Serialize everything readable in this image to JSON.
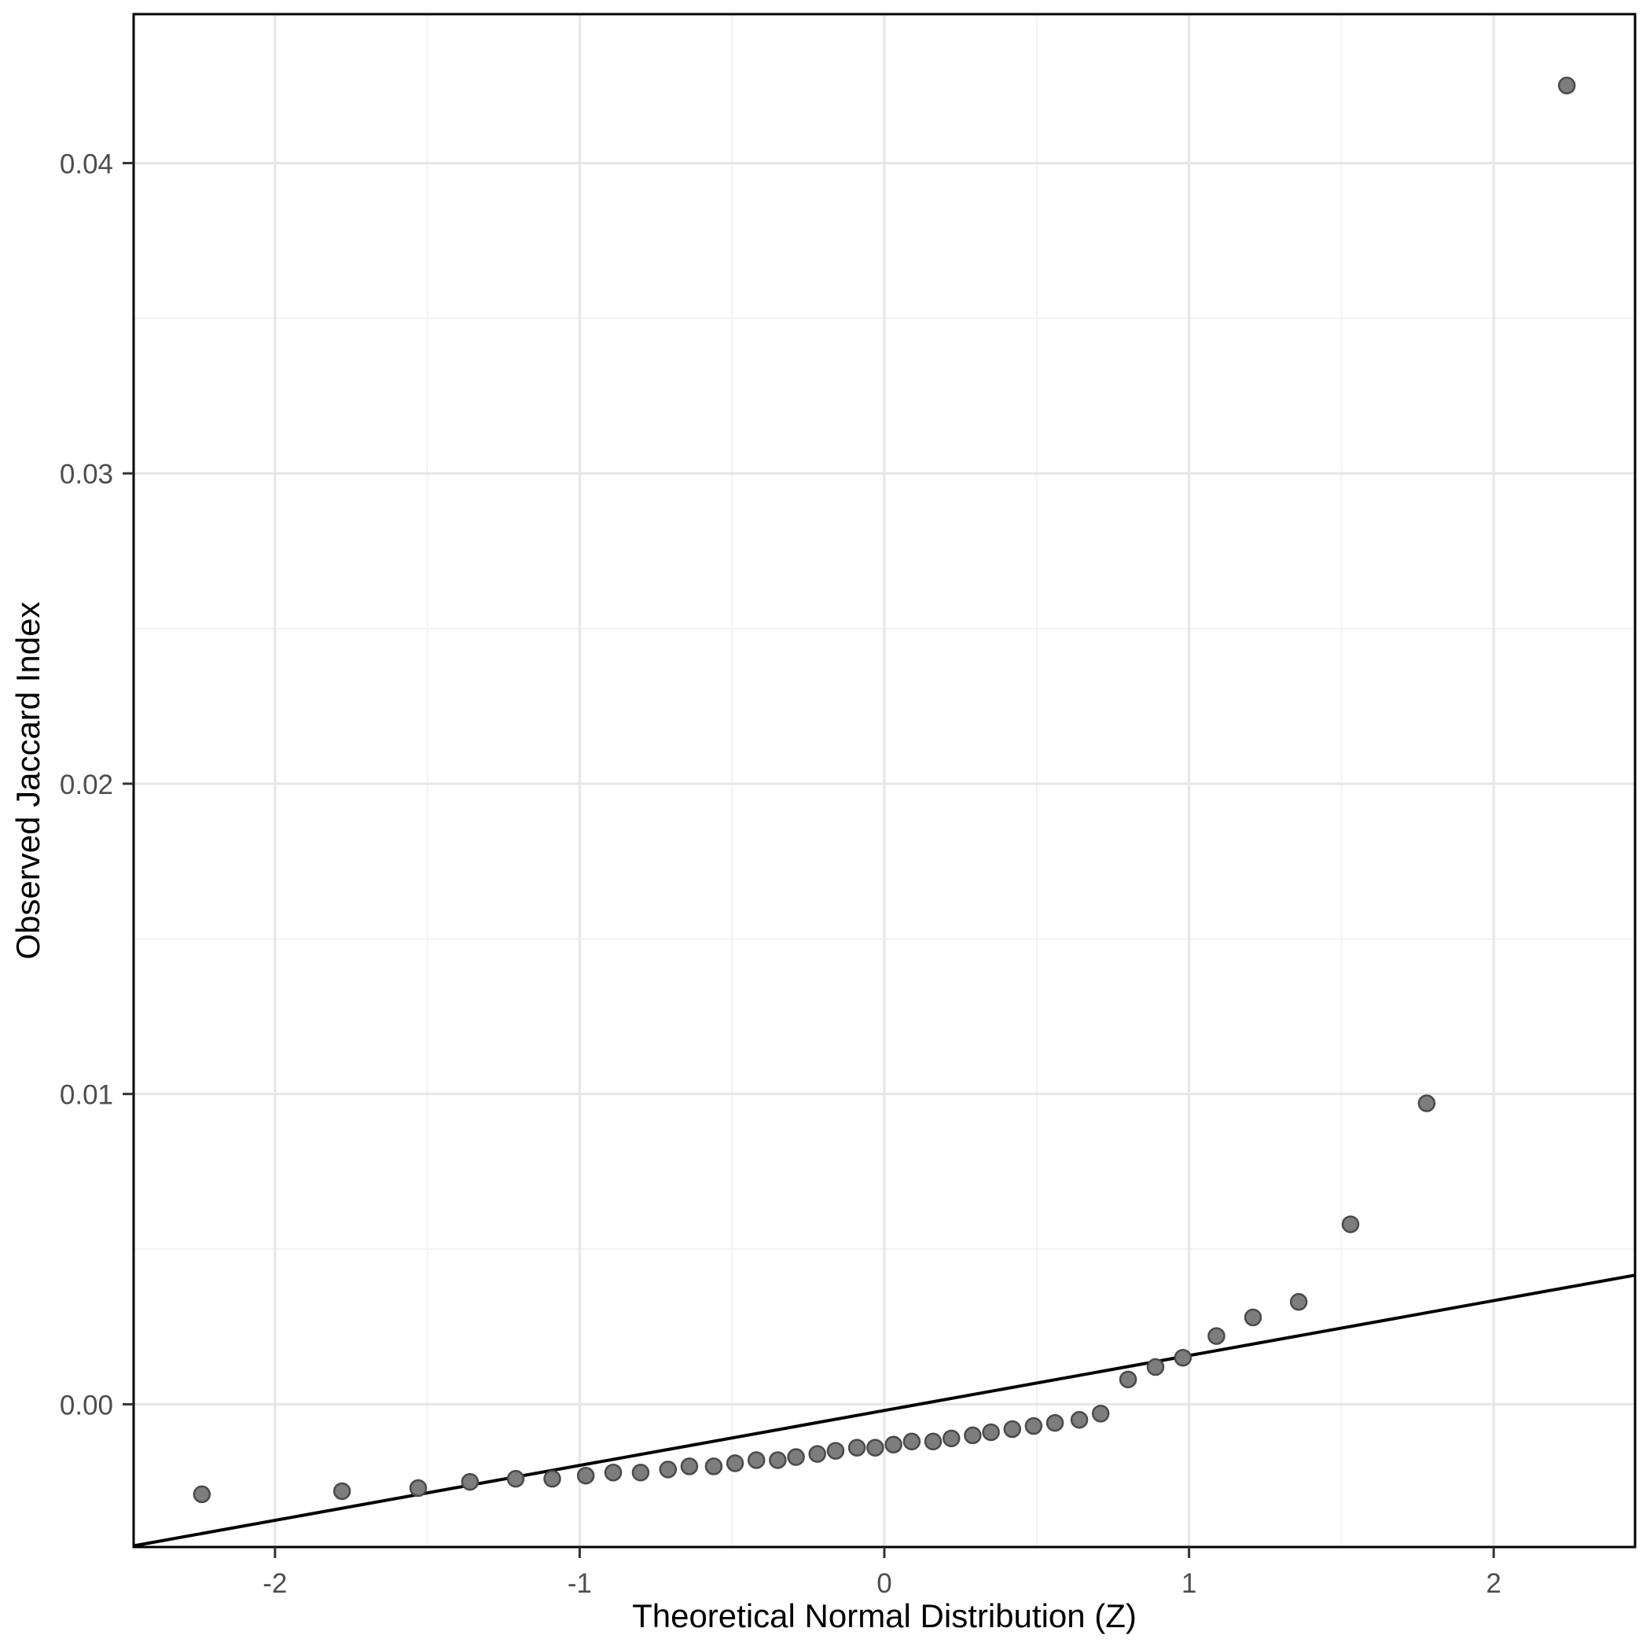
{
  "chart_data": {
    "type": "scatter",
    "title": "",
    "xlabel": "Theoretical Normal Distribution (Z)",
    "ylabel": "Observed Jaccard Index",
    "xlim": [
      -2.464,
      2.464
    ],
    "ylim": [
      -0.0046,
      0.0448
    ],
    "grid": true,
    "legend": "none",
    "x_ticks": {
      "values": [
        -2,
        -1,
        0,
        1,
        2
      ],
      "labels": [
        "-2",
        "-1",
        "0",
        "1",
        "2"
      ]
    },
    "y_ticks": {
      "values": [
        0,
        0.01,
        0.02,
        0.03,
        0.04
      ],
      "labels": [
        "0.00",
        "0.01",
        "0.02",
        "0.03",
        "0.04"
      ]
    },
    "x_minor": [
      -1.5,
      -0.5,
      0.5,
      1.5
    ],
    "y_minor": [
      -0.005,
      0.005,
      0.015,
      0.025,
      0.035,
      0.045
    ],
    "points": [
      [
        -2.24,
        -0.0029
      ],
      [
        -1.78,
        -0.0028
      ],
      [
        -1.53,
        -0.0027
      ],
      [
        -1.36,
        -0.0025
      ],
      [
        -1.21,
        -0.0024
      ],
      [
        -1.09,
        -0.0024
      ],
      [
        -0.98,
        -0.0023
      ],
      [
        -0.89,
        -0.0022
      ],
      [
        -0.8,
        -0.0022
      ],
      [
        -0.71,
        -0.0021
      ],
      [
        -0.64,
        -0.002
      ],
      [
        -0.56,
        -0.002
      ],
      [
        -0.49,
        -0.0019
      ],
      [
        -0.42,
        -0.0018
      ],
      [
        -0.35,
        -0.0018
      ],
      [
        -0.29,
        -0.0017
      ],
      [
        -0.22,
        -0.0016
      ],
      [
        -0.16,
        -0.0015
      ],
      [
        -0.09,
        -0.0014
      ],
      [
        -0.03,
        -0.0014
      ],
      [
        0.03,
        -0.0013
      ],
      [
        0.09,
        -0.0012
      ],
      [
        0.16,
        -0.0012
      ],
      [
        0.22,
        -0.0011
      ],
      [
        0.29,
        -0.001
      ],
      [
        0.35,
        -0.0009
      ],
      [
        0.42,
        -0.0008
      ],
      [
        0.49,
        -0.0007
      ],
      [
        0.56,
        -0.0006
      ],
      [
        0.64,
        -0.0005
      ],
      [
        0.71,
        -0.0003
      ],
      [
        0.8,
        0.0008
      ],
      [
        0.89,
        0.0012
      ],
      [
        0.98,
        0.0015
      ],
      [
        1.09,
        0.0022
      ],
      [
        1.21,
        0.0028
      ],
      [
        1.36,
        0.0033
      ],
      [
        1.53,
        0.0058
      ],
      [
        1.78,
        0.0097
      ],
      [
        2.24,
        0.0425
      ]
    ],
    "reference_line": {
      "slope": 0.00177,
      "intercept": -0.0002
    },
    "style": {
      "panel_background": "#FFFFFF",
      "grid_major_color": "#E6E6E6",
      "grid_minor_color": "#F2F2F2",
      "panel_border_color": "#000000",
      "point_fill": "#7D7D7D",
      "point_stroke": "#4A4A4A",
      "point_radius": 10,
      "line_color": "#000000",
      "line_width": 4,
      "tick_color": "#333333",
      "tick_label_color": "#4D4D4D",
      "axis_title_color": "#000000"
    }
  }
}
